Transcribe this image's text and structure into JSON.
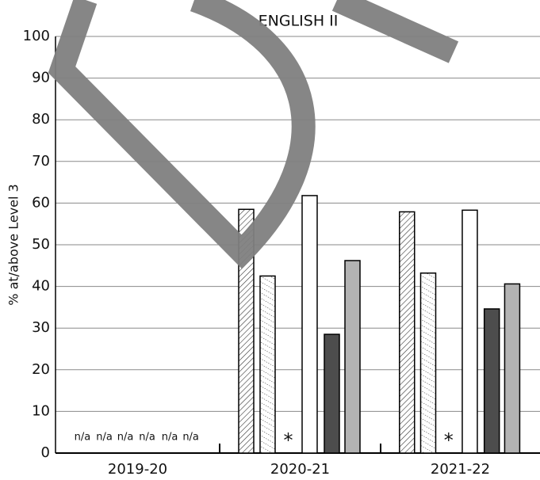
{
  "chart_data": {
    "type": "bar",
    "title": "ENGLISH II",
    "y_label": "% at/above Level 3",
    "categories": [
      "2019-20",
      "2020-21",
      "2021-22"
    ],
    "series": [
      {
        "color": "#333333",
        "pattern": "diagonal",
        "values": [
          null,
          58.5,
          57.9
        ],
        "value_labels": [
          "n/a",
          null,
          null
        ]
      },
      {
        "color": "#333333",
        "pattern": "dotted",
        "values": [
          null,
          42.5,
          43.2
        ],
        "value_labels": [
          "n/a",
          null,
          null
        ]
      },
      {
        "color": "#000000",
        "values": [
          null,
          null,
          null
        ],
        "value_labels": [
          "n/a",
          "*",
          "*"
        ]
      },
      {
        "color": "#ffffff",
        "values": [
          null,
          61.8,
          58.3
        ],
        "value_labels": [
          "n/a",
          null,
          null
        ]
      },
      {
        "color": "#4d4d4d",
        "values": [
          null,
          28.5,
          34.6
        ],
        "value_labels": [
          "n/a",
          null,
          null
        ]
      },
      {
        "color": "#b3b3b3",
        "values": [
          null,
          46.2,
          40.6
        ],
        "value_labels": [
          "n/a",
          null,
          null
        ]
      }
    ],
    "ylim": [
      0,
      100
    ],
    "yticks": [
      0,
      10,
      20,
      30,
      40,
      50,
      60,
      70,
      80,
      90,
      100
    ],
    "grid": true
  }
}
